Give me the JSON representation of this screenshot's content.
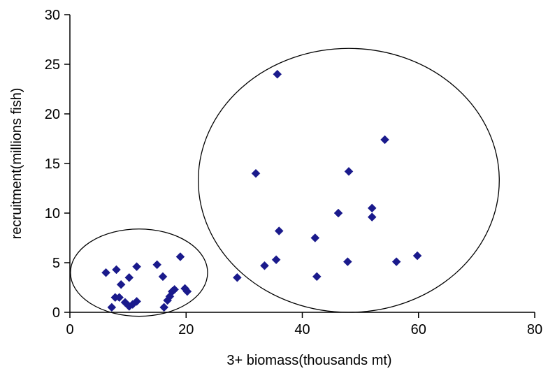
{
  "chart_data": {
    "type": "scatter",
    "title": "",
    "xlabel": "3+ biomass(thousands  mt)",
    "ylabel": "recruitment(millions  fish)",
    "xlim": [
      0,
      80
    ],
    "ylim": [
      0,
      30
    ],
    "xticks": [
      "0",
      "20",
      "40",
      "60",
      "80"
    ],
    "yticks": [
      "0",
      "5",
      "10",
      "15",
      "20",
      "25",
      "30"
    ],
    "grid": false,
    "legend": "none",
    "marker": "diamond",
    "marker_color": "#1a1a8c",
    "series": [
      {
        "points": [
          [
            6.2,
            4.0
          ],
          [
            8.0,
            4.3
          ],
          [
            11.5,
            4.6
          ],
          [
            7.2,
            0.5
          ],
          [
            7.8,
            1.5
          ],
          [
            8.5,
            1.5
          ],
          [
            8.8,
            2.8
          ],
          [
            9.5,
            1.0
          ],
          [
            10.2,
            3.5
          ],
          [
            10.2,
            0.6
          ],
          [
            10.8,
            0.8
          ],
          [
            11.5,
            1.1
          ],
          [
            15.0,
            4.8
          ],
          [
            16.0,
            3.6
          ],
          [
            16.2,
            0.5
          ],
          [
            16.8,
            1.2
          ],
          [
            17.2,
            1.6
          ],
          [
            17.6,
            2.1
          ],
          [
            18.0,
            2.3
          ],
          [
            19.0,
            5.6
          ],
          [
            19.8,
            2.4
          ],
          [
            20.2,
            2.1
          ],
          [
            28.8,
            3.5
          ],
          [
            32.0,
            14.0
          ],
          [
            33.5,
            4.7
          ],
          [
            35.5,
            5.3
          ],
          [
            35.7,
            24.0
          ],
          [
            36.0,
            8.2
          ],
          [
            42.2,
            7.5
          ],
          [
            42.5,
            3.6
          ],
          [
            46.2,
            10.0
          ],
          [
            47.8,
            5.1
          ],
          [
            48.0,
            14.2
          ],
          [
            52.0,
            10.5
          ],
          [
            52.0,
            9.6
          ],
          [
            54.2,
            17.4
          ],
          [
            56.2,
            5.1
          ],
          [
            59.8,
            5.7
          ]
        ]
      }
    ],
    "annotations": [
      {
        "shape": "ellipse",
        "center": [
          11.9,
          4.0
        ],
        "radius": [
          11.8,
          4.4
        ]
      },
      {
        "shape": "ellipse",
        "center": [
          48.0,
          13.3
        ],
        "radius": [
          25.9,
          13.3
        ]
      }
    ]
  }
}
